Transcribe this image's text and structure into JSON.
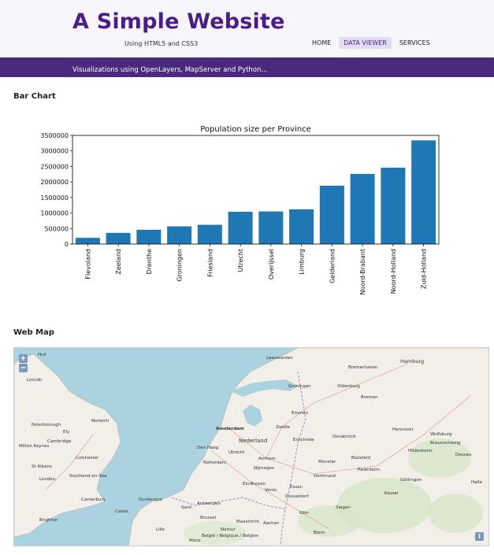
{
  "header": {
    "title": "A Simple Website",
    "subtitle": "Using HTML5 and CSS3",
    "nav": [
      {
        "label": "HOME",
        "active": false
      },
      {
        "label": "DATA VIEWER",
        "active": true
      },
      {
        "label": "SERVICES",
        "active": false
      }
    ]
  },
  "banner": {
    "text": "Visualizations using OpenLayers, MapServer and Python..."
  },
  "sections": {
    "bar_chart_title": "Bar Chart",
    "web_map_title": "Web Map"
  },
  "chart_data": {
    "type": "bar",
    "title": "Population size per Province",
    "xlabel": "",
    "ylabel": "",
    "categories": [
      "Flevoland",
      "Zeeland",
      "Drenthe",
      "Groningen",
      "Friesland",
      "Utrecht",
      "Overijssel",
      "Limburg",
      "Gelderland",
      "Noord-Brabant",
      "Noord-Holland",
      "Zuid-Holland"
    ],
    "values": [
      200000,
      360000,
      460000,
      570000,
      620000,
      1040000,
      1050000,
      1120000,
      1880000,
      2260000,
      2460000,
      3340000
    ],
    "ylim": [
      0,
      3500000
    ],
    "yticks": [
      "0",
      "500000",
      "1000000",
      "1500000",
      "2000000",
      "2500000",
      "3000000",
      "3500000"
    ],
    "bar_color": "#1f77b4",
    "grid": false
  },
  "map": {
    "zoom_in": "+",
    "zoom_out": "−",
    "info": "i",
    "labels": [
      "Hull",
      "Lincoln",
      "Norwich",
      "Peterborough",
      "Ely",
      "Cambridge",
      "Milton Keynes",
      "Colchester",
      "St Albans",
      "London",
      "Southend-on-Sea",
      "Canterbury",
      "Brighton",
      "Dunkerque",
      "Calais",
      "Amsterdam",
      "Nederland",
      "Utrecht",
      "Rotterdam",
      "Den Haag",
      "Antwerpen",
      "Brussel",
      "België / Belgique / Belgien",
      "Lille",
      "Gent",
      "Mons",
      "Namur",
      "Maastricht",
      "Aachen",
      "Köln",
      "Düsseldorf",
      "Essen",
      "Dortmund",
      "Münster",
      "Osnabrück",
      "Bremen",
      "Hamburg",
      "Hannover",
      "Bielefeld",
      "Paderborn",
      "Kassel",
      "Göttingen",
      "Wolfsburg",
      "Braunschweig",
      "Oldenburg",
      "Bremerhaven",
      "Groningen",
      "Emmen",
      "Zwolle",
      "Enschede",
      "Nijmegen",
      "Arnhem",
      "Eindhoven",
      "Venlo",
      "Bonn",
      "Siegen",
      "Dessau",
      "Halle",
      "Hildesheim",
      "Leeuwarden"
    ]
  }
}
